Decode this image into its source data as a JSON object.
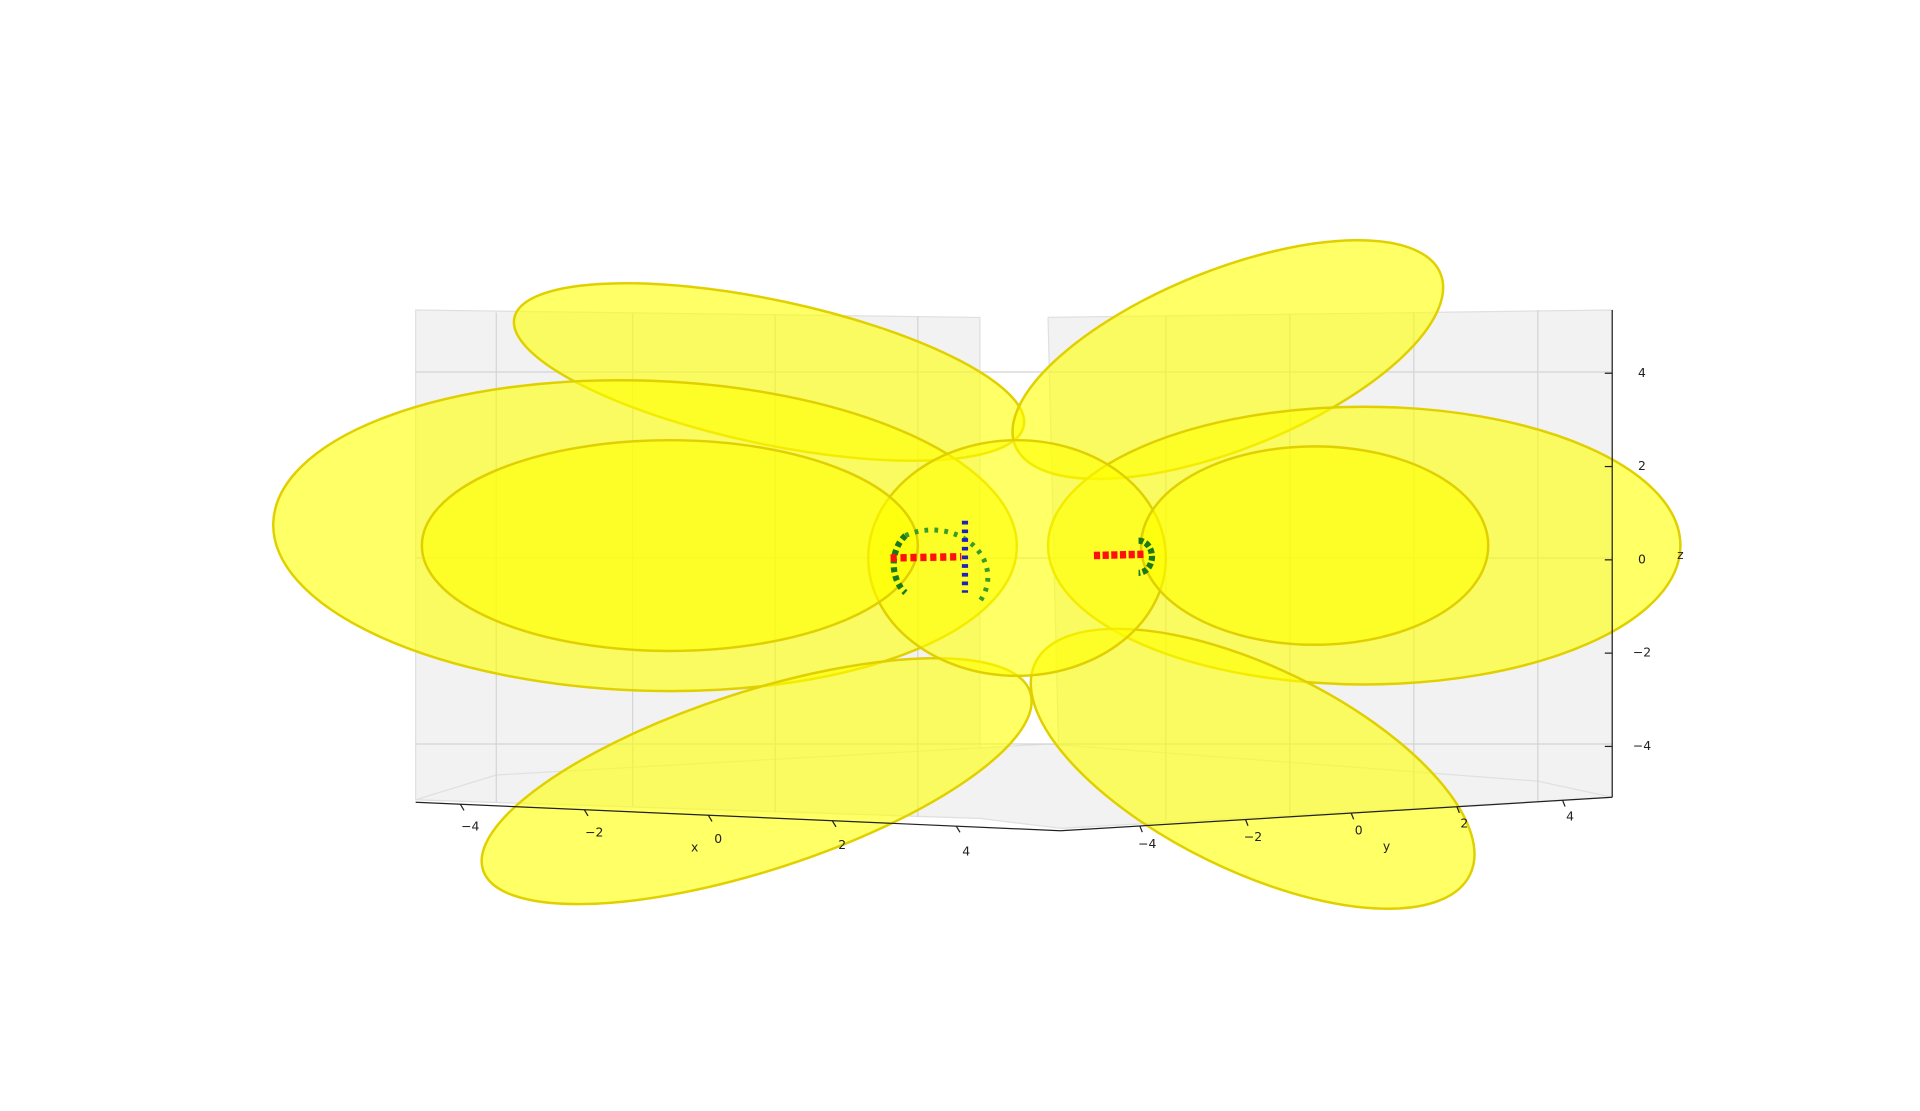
{
  "chart_data": {
    "type": "surface3d",
    "x_label": "x",
    "y_label": "y",
    "z_label": "z",
    "color": "#ffff00",
    "xlim": [
      -5,
      5
    ],
    "ylim": [
      -5,
      5
    ],
    "zlim": [
      -5,
      5
    ],
    "xticks": [
      {
        "value": -4,
        "label": "−4"
      },
      {
        "value": -2,
        "label": "−2"
      },
      0,
      2,
      4
    ],
    "yticks": [
      {
        "value": -4,
        "label": "−4"
      },
      {
        "value": -2,
        "label": "−2"
      },
      0,
      2,
      4
    ],
    "zticks": [
      {
        "value": -4,
        "label": "−4"
      },
      {
        "value": -2,
        "label": "−2"
      },
      0,
      2,
      4
    ]
  }
}
